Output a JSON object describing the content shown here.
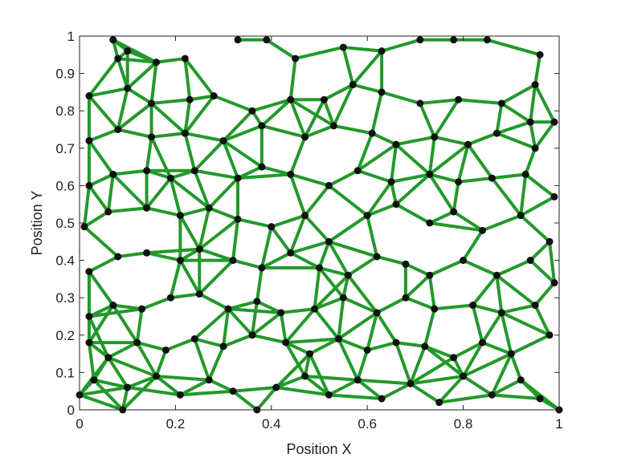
{
  "chart_data": {
    "type": "scatter",
    "title": "",
    "xlabel": "Position X",
    "ylabel": "Position Y",
    "xlim": [
      0,
      1
    ],
    "ylim": [
      0,
      1
    ],
    "grid": false,
    "xticks": [
      "0",
      "0.2",
      "0.4",
      "0.6",
      "0.8",
      "1"
    ],
    "yticks": [
      "0",
      "0.1",
      "0.2",
      "0.3",
      "0.4",
      "0.5",
      "0.6",
      "0.7",
      "0.8",
      "0.9",
      "1"
    ],
    "edge_color": "#22992a",
    "node_color": "#111111",
    "connection_threshold": 0.12,
    "nodes": [
      [
        0.07,
        0.99
      ],
      [
        0.08,
        0.94
      ],
      [
        0.1,
        0.96
      ],
      [
        0.16,
        0.93
      ],
      [
        0.22,
        0.94
      ],
      [
        0.33,
        0.99
      ],
      [
        0.39,
        0.99
      ],
      [
        0.45,
        0.94
      ],
      [
        0.55,
        0.97
      ],
      [
        0.63,
        0.96
      ],
      [
        0.71,
        0.99
      ],
      [
        0.78,
        0.99
      ],
      [
        0.85,
        0.99
      ],
      [
        0.96,
        0.95
      ],
      [
        0.95,
        0.87
      ],
      [
        0.02,
        0.84
      ],
      [
        0.1,
        0.86
      ],
      [
        0.15,
        0.82
      ],
      [
        0.23,
        0.83
      ],
      [
        0.28,
        0.84
      ],
      [
        0.36,
        0.8
      ],
      [
        0.44,
        0.83
      ],
      [
        0.51,
        0.83
      ],
      [
        0.57,
        0.87
      ],
      [
        0.63,
        0.85
      ],
      [
        0.71,
        0.82
      ],
      [
        0.79,
        0.83
      ],
      [
        0.88,
        0.82
      ],
      [
        0.94,
        0.77
      ],
      [
        0.99,
        0.77
      ],
      [
        0.02,
        0.72
      ],
      [
        0.08,
        0.75
      ],
      [
        0.15,
        0.73
      ],
      [
        0.22,
        0.74
      ],
      [
        0.3,
        0.72
      ],
      [
        0.38,
        0.76
      ],
      [
        0.47,
        0.73
      ],
      [
        0.53,
        0.76
      ],
      [
        0.61,
        0.74
      ],
      [
        0.66,
        0.71
      ],
      [
        0.74,
        0.73
      ],
      [
        0.81,
        0.71
      ],
      [
        0.87,
        0.74
      ],
      [
        0.95,
        0.7
      ],
      [
        0.02,
        0.6
      ],
      [
        0.07,
        0.63
      ],
      [
        0.14,
        0.64
      ],
      [
        0.19,
        0.62
      ],
      [
        0.24,
        0.64
      ],
      [
        0.33,
        0.62
      ],
      [
        0.38,
        0.65
      ],
      [
        0.44,
        0.63
      ],
      [
        0.52,
        0.6
      ],
      [
        0.58,
        0.64
      ],
      [
        0.65,
        0.61
      ],
      [
        0.73,
        0.63
      ],
      [
        0.79,
        0.61
      ],
      [
        0.86,
        0.62
      ],
      [
        0.93,
        0.63
      ],
      [
        0.99,
        0.57
      ],
      [
        0.01,
        0.49
      ],
      [
        0.06,
        0.53
      ],
      [
        0.14,
        0.54
      ],
      [
        0.21,
        0.52
      ],
      [
        0.27,
        0.54
      ],
      [
        0.33,
        0.51
      ],
      [
        0.4,
        0.49
      ],
      [
        0.47,
        0.52
      ],
      [
        0.52,
        0.45
      ],
      [
        0.6,
        0.52
      ],
      [
        0.66,
        0.55
      ],
      [
        0.73,
        0.5
      ],
      [
        0.78,
        0.53
      ],
      [
        0.84,
        0.48
      ],
      [
        0.92,
        0.52
      ],
      [
        0.98,
        0.45
      ],
      [
        0.02,
        0.37
      ],
      [
        0.08,
        0.41
      ],
      [
        0.14,
        0.42
      ],
      [
        0.21,
        0.4
      ],
      [
        0.25,
        0.43
      ],
      [
        0.32,
        0.4
      ],
      [
        0.38,
        0.38
      ],
      [
        0.44,
        0.42
      ],
      [
        0.5,
        0.38
      ],
      [
        0.56,
        0.36
      ],
      [
        0.62,
        0.41
      ],
      [
        0.68,
        0.39
      ],
      [
        0.73,
        0.36
      ],
      [
        0.8,
        0.4
      ],
      [
        0.87,
        0.36
      ],
      [
        0.94,
        0.4
      ],
      [
        0.99,
        0.34
      ],
      [
        0.02,
        0.25
      ],
      [
        0.07,
        0.28
      ],
      [
        0.13,
        0.27
      ],
      [
        0.19,
        0.3
      ],
      [
        0.25,
        0.31
      ],
      [
        0.31,
        0.27
      ],
      [
        0.37,
        0.29
      ],
      [
        0.42,
        0.26
      ],
      [
        0.49,
        0.27
      ],
      [
        0.55,
        0.3
      ],
      [
        0.62,
        0.26
      ],
      [
        0.68,
        0.3
      ],
      [
        0.74,
        0.27
      ],
      [
        0.82,
        0.28
      ],
      [
        0.88,
        0.26
      ],
      [
        0.95,
        0.28
      ],
      [
        0.02,
        0.18
      ],
      [
        0.06,
        0.14
      ],
      [
        0.12,
        0.18
      ],
      [
        0.18,
        0.16
      ],
      [
        0.24,
        0.19
      ],
      [
        0.3,
        0.17
      ],
      [
        0.36,
        0.2
      ],
      [
        0.43,
        0.18
      ],
      [
        0.48,
        0.15
      ],
      [
        0.54,
        0.19
      ],
      [
        0.6,
        0.16
      ],
      [
        0.66,
        0.18
      ],
      [
        0.72,
        0.17
      ],
      [
        0.78,
        0.14
      ],
      [
        0.84,
        0.18
      ],
      [
        0.9,
        0.15
      ],
      [
        0.98,
        0.2
      ],
      [
        0.0,
        0.04
      ],
      [
        0.03,
        0.08
      ],
      [
        0.09,
        0.0
      ],
      [
        0.1,
        0.06
      ],
      [
        0.16,
        0.09
      ],
      [
        0.21,
        0.04
      ],
      [
        0.27,
        0.08
      ],
      [
        0.32,
        0.05
      ],
      [
        0.37,
        0.0
      ],
      [
        0.41,
        0.06
      ],
      [
        0.47,
        0.09
      ],
      [
        0.52,
        0.04
      ],
      [
        0.58,
        0.08
      ],
      [
        0.63,
        0.03
      ],
      [
        0.69,
        0.07
      ],
      [
        0.75,
        0.02
      ],
      [
        0.8,
        0.09
      ],
      [
        0.86,
        0.04
      ],
      [
        0.92,
        0.08
      ],
      [
        0.96,
        0.03
      ],
      [
        1.0,
        0.0
      ]
    ]
  }
}
